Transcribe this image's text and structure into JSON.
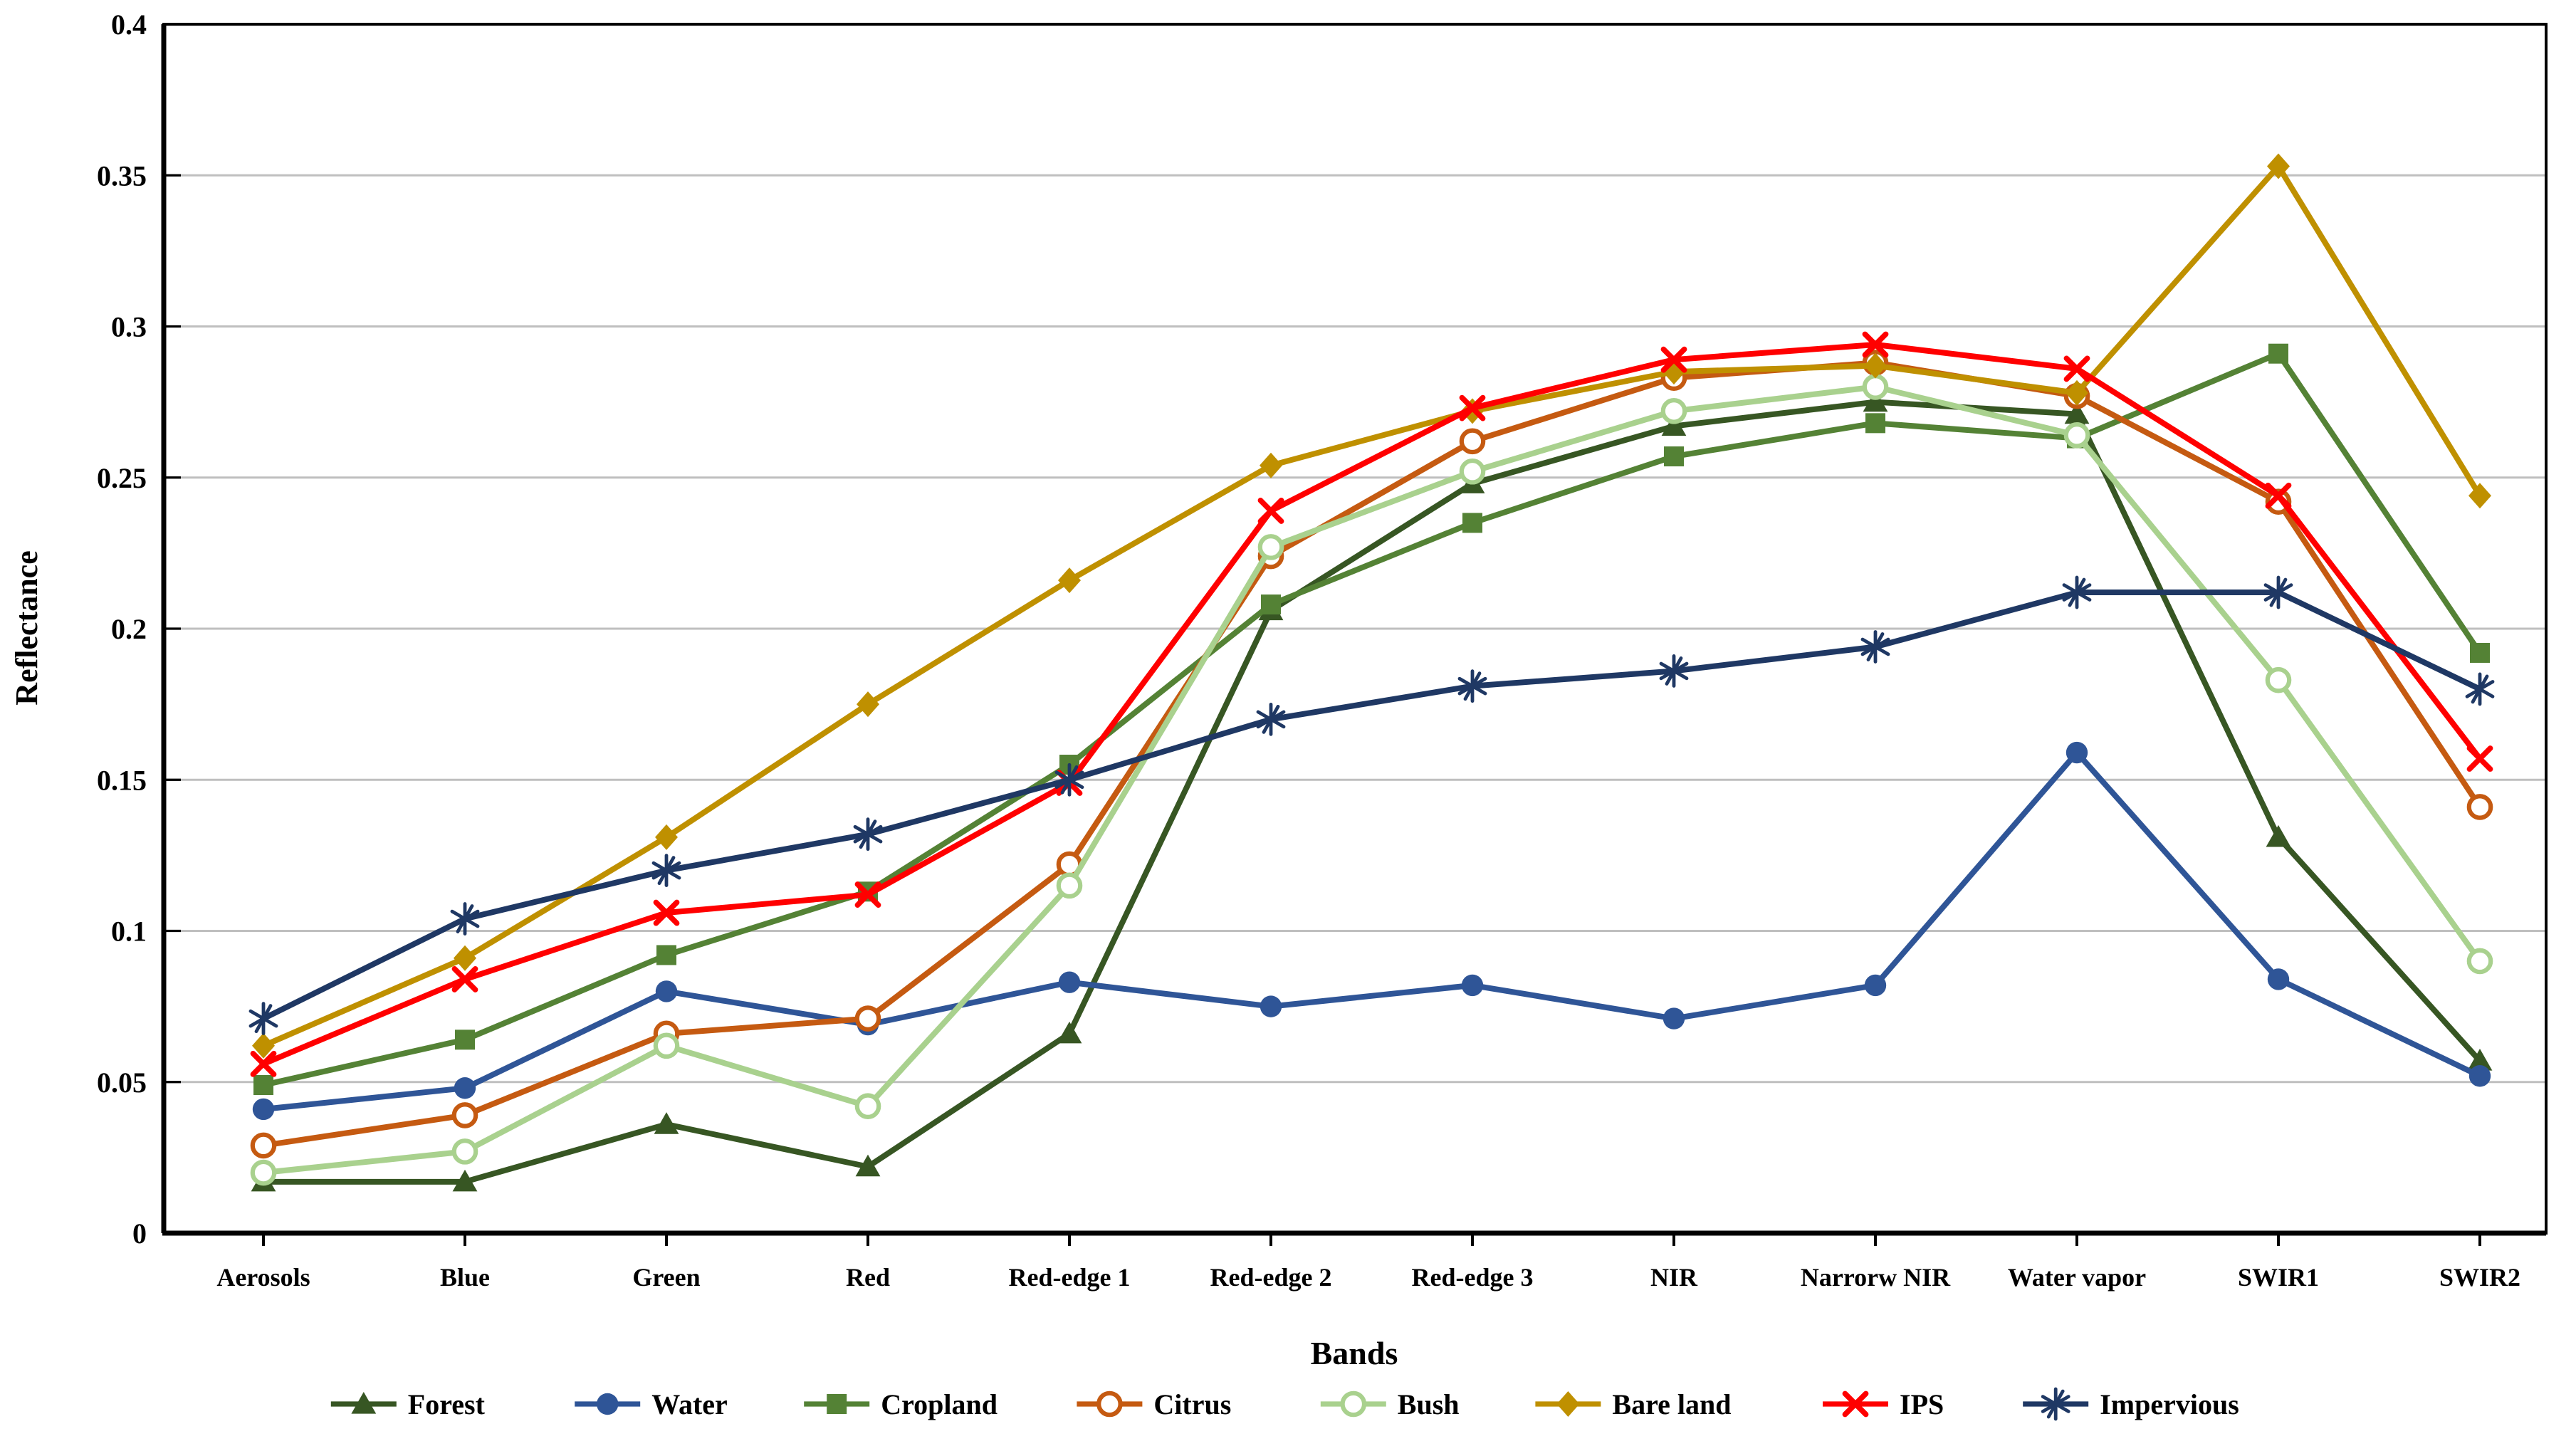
{
  "chart_data": {
    "type": "line",
    "title": "",
    "xlabel": "Bands",
    "ylabel": "Reflectance",
    "ylim": [
      0,
      0.4
    ],
    "y_tick_labels": [
      "0",
      "0.05",
      "0.1",
      "0.15",
      "0.2",
      "0.25",
      "0.3",
      "0.35",
      "0.4"
    ],
    "grid": "horizontal-gridlines-on",
    "legend_position": "bottom",
    "gridline_color": "#bfbfbf",
    "axis_color": "#000000",
    "background_color": "#ffffff",
    "categories": [
      "Aerosols",
      "Blue",
      "Green",
      "Red",
      "Red-edge 1",
      "Red-edge 2",
      "Red-edge 3",
      "NIR",
      "Narrorw NIR",
      "Water vapor",
      "SWIR1",
      "SWIR2"
    ],
    "series": [
      {
        "name": "Forest",
        "color": "#375623",
        "marker": "triangle",
        "values": [
          0.017,
          0.017,
          0.036,
          0.022,
          0.066,
          0.206,
          0.248,
          0.267,
          0.275,
          0.271,
          0.131,
          0.057
        ]
      },
      {
        "name": "Water",
        "color": "#2F5597",
        "marker": "circle",
        "values": [
          0.041,
          0.048,
          0.08,
          0.069,
          0.083,
          0.075,
          0.082,
          0.071,
          0.082,
          0.159,
          0.084,
          0.052
        ]
      },
      {
        "name": "Cropland",
        "color": "#548235",
        "marker": "square",
        "values": [
          0.049,
          0.064,
          0.092,
          0.113,
          0.155,
          0.208,
          0.235,
          0.257,
          0.268,
          0.263,
          0.291,
          0.192
        ]
      },
      {
        "name": "Citrus",
        "color": "#C55A11",
        "marker": "open-circle",
        "values": [
          0.029,
          0.039,
          0.066,
          0.071,
          0.122,
          0.224,
          0.262,
          0.283,
          0.288,
          0.277,
          0.242,
          0.141
        ]
      },
      {
        "name": "Bush",
        "color": "#A9D18E",
        "marker": "open-circle",
        "values": [
          0.02,
          0.027,
          0.062,
          0.042,
          0.115,
          0.227,
          0.252,
          0.272,
          0.28,
          0.264,
          0.183,
          0.09
        ]
      },
      {
        "name": "Bare land",
        "color": "#BF9000",
        "marker": "diamond",
        "values": [
          0.062,
          0.091,
          0.131,
          0.175,
          0.216,
          0.254,
          0.272,
          0.285,
          0.287,
          0.278,
          0.353,
          0.244
        ]
      },
      {
        "name": "IPS",
        "color": "#FF0000",
        "marker": "x",
        "values": [
          0.056,
          0.084,
          0.106,
          0.112,
          0.149,
          0.239,
          0.273,
          0.289,
          0.294,
          0.286,
          0.244,
          0.157
        ]
      },
      {
        "name": "Impervious",
        "color": "#1F3864",
        "marker": "star",
        "values": [
          0.071,
          0.104,
          0.12,
          0.132,
          0.15,
          0.17,
          0.181,
          0.186,
          0.194,
          0.212,
          0.212,
          0.18
        ]
      }
    ]
  }
}
